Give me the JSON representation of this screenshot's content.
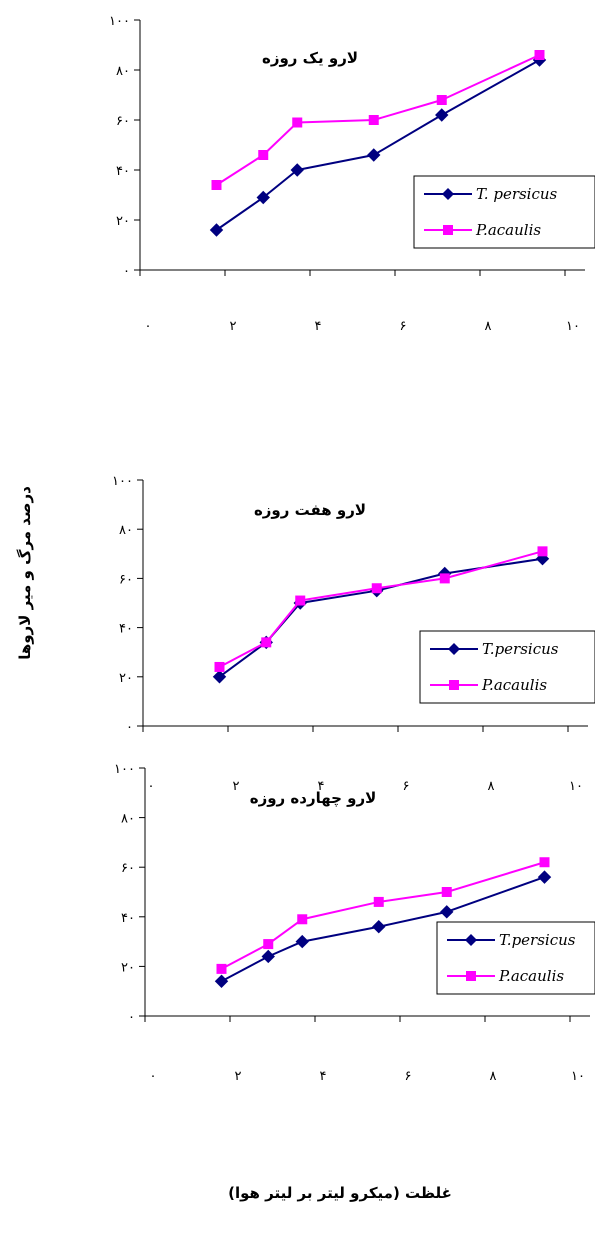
{
  "ylabel": "درصد مرگ و میر لاروها",
  "xlabel": "غلظت (میکرو لیتر بر لیتر هوا)",
  "colors": {
    "persicus": "#000080",
    "acaulis": "#ff00ff",
    "axis": "#000000"
  },
  "chart_data": [
    {
      "type": "line",
      "title": "لارو یک روزه",
      "xlim": [
        0,
        10
      ],
      "ylim": [
        0,
        100
      ],
      "xticks": [
        "۰",
        "۲",
        "۴",
        "۶",
        "۸",
        "۱۰"
      ],
      "yticks": [
        "۰",
        "۲۰",
        "۴۰",
        "۶۰",
        "۸۰",
        "۱۰۰"
      ],
      "series": [
        {
          "name": "T. persicus",
          "color": "#000080",
          "marker": "diamond",
          "x": [
            1.8,
            2.9,
            3.7,
            5.5,
            7.1,
            9.4
          ],
          "y": [
            16,
            29,
            40,
            46,
            62,
            84
          ]
        },
        {
          "name": "P.acaulis",
          "color": "#ff00ff",
          "marker": "square",
          "x": [
            1.8,
            2.9,
            3.7,
            5.5,
            7.1,
            9.4
          ],
          "y": [
            34,
            46,
            59,
            60,
            68,
            86
          ]
        }
      ]
    },
    {
      "type": "line",
      "title": "لارو هفت روزه",
      "xlim": [
        0,
        10
      ],
      "ylim": [
        0,
        100
      ],
      "xticks": [
        "۰",
        "۲",
        "۴",
        "۶",
        "۸",
        "۱۰"
      ],
      "yticks": [
        "۰",
        "۲۰",
        "۴۰",
        "۶۰",
        "۸۰",
        "۱۰۰"
      ],
      "series": [
        {
          "name": "T.persicus",
          "color": "#000080",
          "marker": "diamond",
          "x": [
            1.8,
            2.9,
            3.7,
            5.5,
            7.1,
            9.4
          ],
          "y": [
            20,
            34,
            50,
            55,
            62,
            68
          ]
        },
        {
          "name": "P.acaulis",
          "color": "#ff00ff",
          "marker": "square",
          "x": [
            1.8,
            2.9,
            3.7,
            5.5,
            7.1,
            9.4
          ],
          "y": [
            24,
            34,
            51,
            56,
            60,
            71
          ]
        }
      ]
    },
    {
      "type": "line",
      "title": "لارو چهارده روزه",
      "xlim": [
        0,
        10
      ],
      "ylim": [
        0,
        100
      ],
      "xticks": [
        "۰",
        "۲",
        "۴",
        "۶",
        "۸",
        "۱۰"
      ],
      "yticks": [
        "۰",
        "۲۰",
        "۴۰",
        "۶۰",
        "۸۰",
        "۱۰۰"
      ],
      "series": [
        {
          "name": "T.persicus",
          "color": "#000080",
          "marker": "diamond",
          "x": [
            1.8,
            2.9,
            3.7,
            5.5,
            7.1,
            9.4
          ],
          "y": [
            14,
            24,
            30,
            36,
            42,
            56
          ]
        },
        {
          "name": "P.acaulis",
          "color": "#ff00ff",
          "marker": "square",
          "x": [
            1.8,
            2.9,
            3.7,
            5.5,
            7.1,
            9.4
          ],
          "y": [
            19,
            29,
            39,
            46,
            50,
            62
          ]
        }
      ]
    }
  ]
}
